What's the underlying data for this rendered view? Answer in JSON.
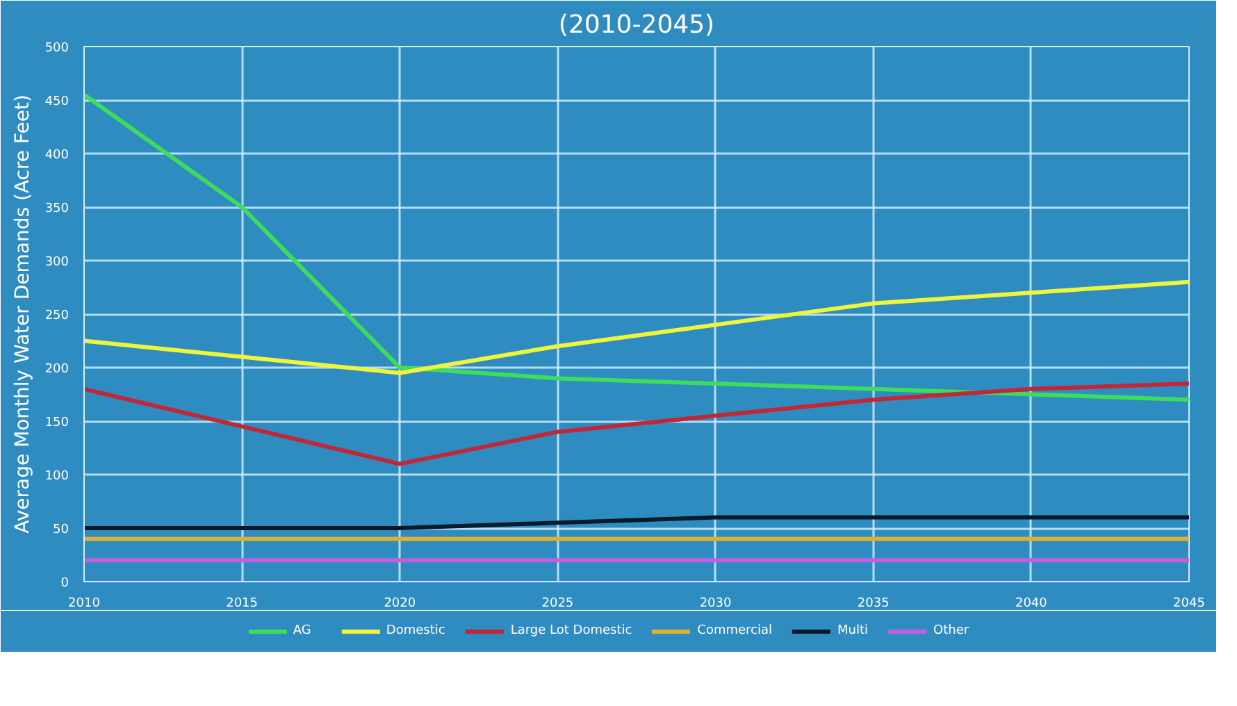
{
  "chart_data": {
    "type": "line",
    "title": "(2010-2045)",
    "ylabel": "Average Monthly Water Demands (Acre Feet)",
    "x": [
      2010,
      2015,
      2020,
      2025,
      2030,
      2035,
      2040,
      2045
    ],
    "series": [
      {
        "name": "AG",
        "color": "#3ddc5a",
        "values": [
          455,
          350,
          200,
          190,
          185,
          180,
          175,
          170
        ]
      },
      {
        "name": "Domestic",
        "color": "#eef53c",
        "values": [
          225,
          210,
          195,
          220,
          240,
          260,
          270,
          280
        ]
      },
      {
        "name": "Large Lot Domestic",
        "color": "#c0283a",
        "values": [
          180,
          145,
          110,
          140,
          155,
          170,
          180,
          185
        ]
      },
      {
        "name": "Commercial",
        "color": "#e0b030",
        "values": [
          40,
          40,
          40,
          40,
          40,
          40,
          40,
          40
        ]
      },
      {
        "name": "Multi",
        "color": "#0a1a2a",
        "values": [
          50,
          50,
          50,
          55,
          60,
          60,
          60,
          60
        ]
      },
      {
        "name": "Other",
        "color": "#c060e0",
        "values": [
          20,
          20,
          20,
          20,
          20,
          20,
          20,
          20
        ]
      }
    ],
    "xlim": [
      2010,
      2045
    ],
    "ylim": [
      0,
      500
    ],
    "xticks": [
      2010,
      2015,
      2020,
      2025,
      2030,
      2035,
      2040,
      2045
    ],
    "yticks": [
      0,
      50,
      100,
      150,
      200,
      250,
      300,
      350,
      400,
      450,
      500
    ],
    "grid": true,
    "legend": "bottom",
    "marker": "none",
    "line_style": "solid"
  }
}
